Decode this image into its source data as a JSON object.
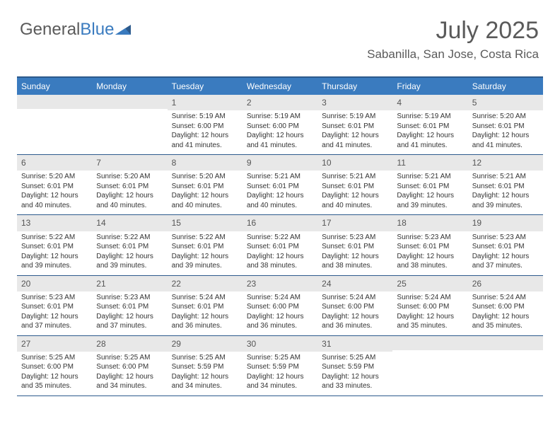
{
  "logo": {
    "part1": "General",
    "part2": "Blue"
  },
  "header": {
    "month": "July 2025",
    "location": "Sabanilla, San Jose, Costa Rica"
  },
  "colors": {
    "header_bg": "#3a7bbf",
    "header_border": "#2d5a8c",
    "daynum_bg": "#e8e8e8",
    "text_gray": "#5a5a5a",
    "logo_blue": "#3a7bbf"
  },
  "day_names": [
    "Sunday",
    "Monday",
    "Tuesday",
    "Wednesday",
    "Thursday",
    "Friday",
    "Saturday"
  ],
  "weeks": [
    [
      null,
      null,
      {
        "d": "1",
        "sr": "5:19 AM",
        "ss": "6:00 PM",
        "dl": "12 hours and 41 minutes."
      },
      {
        "d": "2",
        "sr": "5:19 AM",
        "ss": "6:00 PM",
        "dl": "12 hours and 41 minutes."
      },
      {
        "d": "3",
        "sr": "5:19 AM",
        "ss": "6:01 PM",
        "dl": "12 hours and 41 minutes."
      },
      {
        "d": "4",
        "sr": "5:19 AM",
        "ss": "6:01 PM",
        "dl": "12 hours and 41 minutes."
      },
      {
        "d": "5",
        "sr": "5:20 AM",
        "ss": "6:01 PM",
        "dl": "12 hours and 41 minutes."
      }
    ],
    [
      {
        "d": "6",
        "sr": "5:20 AM",
        "ss": "6:01 PM",
        "dl": "12 hours and 40 minutes."
      },
      {
        "d": "7",
        "sr": "5:20 AM",
        "ss": "6:01 PM",
        "dl": "12 hours and 40 minutes."
      },
      {
        "d": "8",
        "sr": "5:20 AM",
        "ss": "6:01 PM",
        "dl": "12 hours and 40 minutes."
      },
      {
        "d": "9",
        "sr": "5:21 AM",
        "ss": "6:01 PM",
        "dl": "12 hours and 40 minutes."
      },
      {
        "d": "10",
        "sr": "5:21 AM",
        "ss": "6:01 PM",
        "dl": "12 hours and 40 minutes."
      },
      {
        "d": "11",
        "sr": "5:21 AM",
        "ss": "6:01 PM",
        "dl": "12 hours and 39 minutes."
      },
      {
        "d": "12",
        "sr": "5:21 AM",
        "ss": "6:01 PM",
        "dl": "12 hours and 39 minutes."
      }
    ],
    [
      {
        "d": "13",
        "sr": "5:22 AM",
        "ss": "6:01 PM",
        "dl": "12 hours and 39 minutes."
      },
      {
        "d": "14",
        "sr": "5:22 AM",
        "ss": "6:01 PM",
        "dl": "12 hours and 39 minutes."
      },
      {
        "d": "15",
        "sr": "5:22 AM",
        "ss": "6:01 PM",
        "dl": "12 hours and 39 minutes."
      },
      {
        "d": "16",
        "sr": "5:22 AM",
        "ss": "6:01 PM",
        "dl": "12 hours and 38 minutes."
      },
      {
        "d": "17",
        "sr": "5:23 AM",
        "ss": "6:01 PM",
        "dl": "12 hours and 38 minutes."
      },
      {
        "d": "18",
        "sr": "5:23 AM",
        "ss": "6:01 PM",
        "dl": "12 hours and 38 minutes."
      },
      {
        "d": "19",
        "sr": "5:23 AM",
        "ss": "6:01 PM",
        "dl": "12 hours and 37 minutes."
      }
    ],
    [
      {
        "d": "20",
        "sr": "5:23 AM",
        "ss": "6:01 PM",
        "dl": "12 hours and 37 minutes."
      },
      {
        "d": "21",
        "sr": "5:23 AM",
        "ss": "6:01 PM",
        "dl": "12 hours and 37 minutes."
      },
      {
        "d": "22",
        "sr": "5:24 AM",
        "ss": "6:01 PM",
        "dl": "12 hours and 36 minutes."
      },
      {
        "d": "23",
        "sr": "5:24 AM",
        "ss": "6:00 PM",
        "dl": "12 hours and 36 minutes."
      },
      {
        "d": "24",
        "sr": "5:24 AM",
        "ss": "6:00 PM",
        "dl": "12 hours and 36 minutes."
      },
      {
        "d": "25",
        "sr": "5:24 AM",
        "ss": "6:00 PM",
        "dl": "12 hours and 35 minutes."
      },
      {
        "d": "26",
        "sr": "5:24 AM",
        "ss": "6:00 PM",
        "dl": "12 hours and 35 minutes."
      }
    ],
    [
      {
        "d": "27",
        "sr": "5:25 AM",
        "ss": "6:00 PM",
        "dl": "12 hours and 35 minutes."
      },
      {
        "d": "28",
        "sr": "5:25 AM",
        "ss": "6:00 PM",
        "dl": "12 hours and 34 minutes."
      },
      {
        "d": "29",
        "sr": "5:25 AM",
        "ss": "5:59 PM",
        "dl": "12 hours and 34 minutes."
      },
      {
        "d": "30",
        "sr": "5:25 AM",
        "ss": "5:59 PM",
        "dl": "12 hours and 34 minutes."
      },
      {
        "d": "31",
        "sr": "5:25 AM",
        "ss": "5:59 PM",
        "dl": "12 hours and 33 minutes."
      },
      null,
      null
    ]
  ],
  "labels": {
    "sunrise": "Sunrise: ",
    "sunset": "Sunset: ",
    "daylight": "Daylight: "
  }
}
